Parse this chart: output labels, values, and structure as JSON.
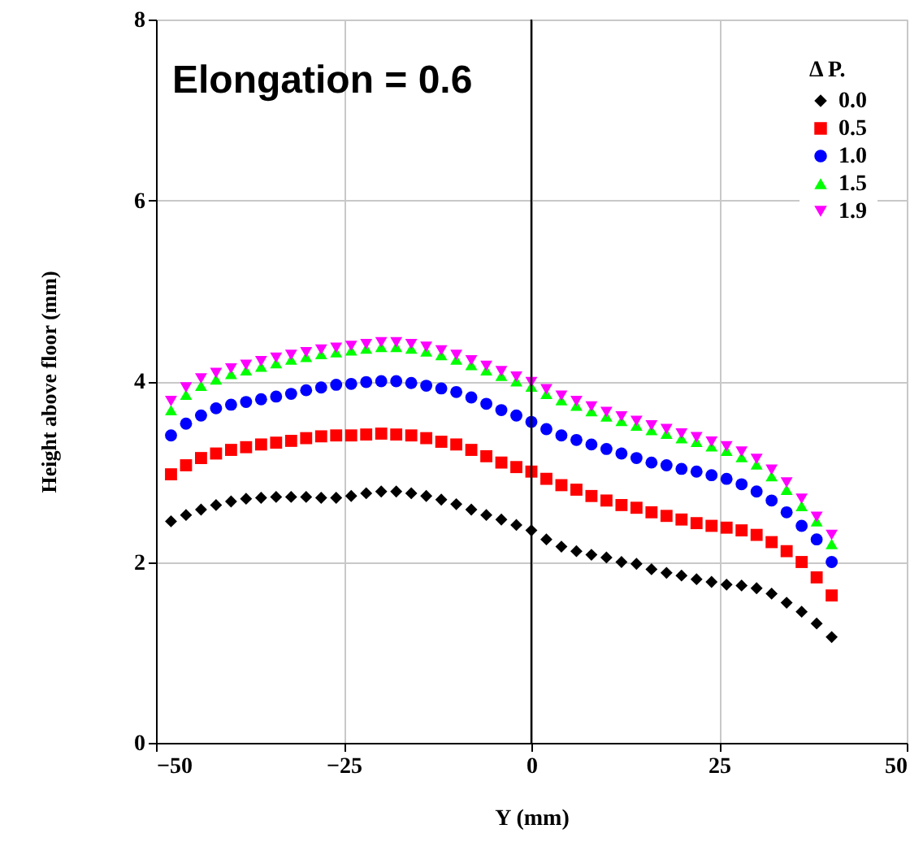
{
  "chart_data": {
    "type": "scatter",
    "xlabel": "Y (mm)",
    "ylabel": "Height above floor (mm)",
    "legend_title": "Δ P.",
    "annotations": [
      "Elongation = 0.6"
    ],
    "x": [
      -48,
      -46,
      -44,
      -42,
      -40,
      -38,
      -36,
      -34,
      -32,
      -30,
      -28,
      -26,
      -24,
      -22,
      -20,
      -18,
      -16,
      -14,
      -12,
      -10,
      -8,
      -6,
      -4,
      -2,
      0,
      2,
      4,
      6,
      8,
      10,
      12,
      14,
      16,
      18,
      20,
      22,
      24,
      26,
      28,
      30,
      32,
      34,
      36,
      38,
      40
    ],
    "series": [
      {
        "name": "0.0",
        "color": "#000000",
        "marker": "diamond",
        "values": [
          2.45,
          2.52,
          2.58,
          2.63,
          2.67,
          2.7,
          2.71,
          2.72,
          2.72,
          2.72,
          2.71,
          2.71,
          2.73,
          2.76,
          2.78,
          2.78,
          2.76,
          2.73,
          2.69,
          2.64,
          2.58,
          2.52,
          2.47,
          2.41,
          2.35,
          2.25,
          2.17,
          2.12,
          2.08,
          2.05,
          2.0,
          1.98,
          1.92,
          1.88,
          1.85,
          1.81,
          1.78,
          1.75,
          1.74,
          1.71,
          1.65,
          1.55,
          1.45,
          1.32,
          1.17
        ]
      },
      {
        "name": "0.5",
        "color": "#ff0000",
        "marker": "square",
        "values": [
          2.97,
          3.07,
          3.15,
          3.2,
          3.24,
          3.27,
          3.3,
          3.32,
          3.34,
          3.37,
          3.39,
          3.4,
          3.4,
          3.41,
          3.42,
          3.41,
          3.4,
          3.37,
          3.33,
          3.3,
          3.24,
          3.17,
          3.1,
          3.05,
          3.0,
          2.92,
          2.85,
          2.8,
          2.73,
          2.68,
          2.63,
          2.6,
          2.55,
          2.51,
          2.47,
          2.43,
          2.4,
          2.38,
          2.35,
          2.3,
          2.22,
          2.12,
          2.0,
          1.83,
          1.63
        ]
      },
      {
        "name": "1.0",
        "color": "#0000ff",
        "marker": "circle",
        "values": [
          3.4,
          3.53,
          3.62,
          3.7,
          3.74,
          3.77,
          3.8,
          3.83,
          3.86,
          3.9,
          3.93,
          3.96,
          3.97,
          3.99,
          4.0,
          4.0,
          3.98,
          3.95,
          3.92,
          3.88,
          3.82,
          3.75,
          3.68,
          3.62,
          3.55,
          3.47,
          3.4,
          3.35,
          3.3,
          3.25,
          3.2,
          3.15,
          3.1,
          3.07,
          3.03,
          3.0,
          2.96,
          2.92,
          2.86,
          2.78,
          2.68,
          2.55,
          2.4,
          2.25,
          2.0
        ]
      },
      {
        "name": "1.5",
        "color": "#00ff00",
        "marker": "triangle",
        "values": [
          3.68,
          3.85,
          3.95,
          4.02,
          4.08,
          4.12,
          4.16,
          4.2,
          4.24,
          4.27,
          4.3,
          4.32,
          4.34,
          4.36,
          4.38,
          4.38,
          4.36,
          4.33,
          4.29,
          4.24,
          4.18,
          4.12,
          4.06,
          4.0,
          3.94,
          3.86,
          3.79,
          3.73,
          3.67,
          3.61,
          3.56,
          3.51,
          3.46,
          3.42,
          3.37,
          3.33,
          3.28,
          3.23,
          3.16,
          3.08,
          2.95,
          2.8,
          2.62,
          2.45,
          2.2
        ]
      },
      {
        "name": "1.9",
        "color": "#ff00ff",
        "marker": "triangle-down",
        "values": [
          3.78,
          3.93,
          4.03,
          4.09,
          4.14,
          4.18,
          4.22,
          4.26,
          4.29,
          4.32,
          4.35,
          4.37,
          4.39,
          4.41,
          4.43,
          4.43,
          4.41,
          4.38,
          4.34,
          4.29,
          4.23,
          4.17,
          4.11,
          4.05,
          3.99,
          3.91,
          3.84,
          3.78,
          3.72,
          3.66,
          3.61,
          3.56,
          3.51,
          3.47,
          3.42,
          3.38,
          3.33,
          3.28,
          3.22,
          3.14,
          3.02,
          2.88,
          2.7,
          2.5,
          2.3
        ]
      }
    ],
    "xlim": [
      -50,
      50
    ],
    "ylim": [
      0,
      8
    ],
    "xticks": [
      -50,
      -25,
      0,
      25,
      50
    ],
    "yticks": [
      0,
      2,
      4,
      6,
      8
    ],
    "ref_lines": [
      {
        "axis": "x",
        "value": 0,
        "color": "#000000"
      }
    ],
    "grid": true,
    "legend": "top right"
  }
}
